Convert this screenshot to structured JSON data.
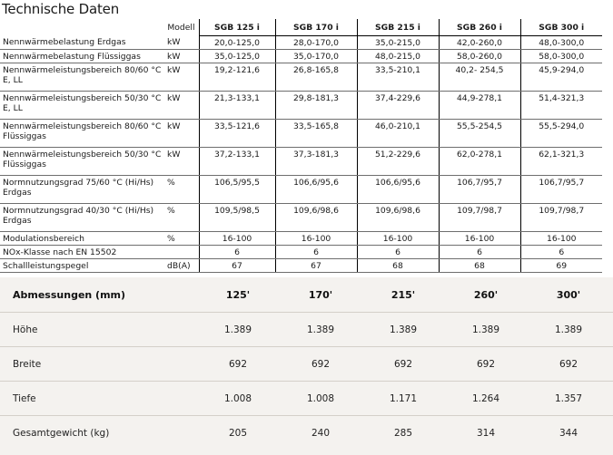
{
  "title": "Technische Daten",
  "tech": {
    "model_label": "Modell",
    "models": [
      "SGB 125 i",
      "SGB 170 i",
      "SGB 215 i",
      "SGB 260 i",
      "SGB 300 i"
    ],
    "rows": [
      {
        "label": [
          "Nennwärmebelastung Erdgas"
        ],
        "unit": "kW",
        "values": [
          "20,0-125,0",
          "28,0-170,0",
          "35,0-215,0",
          "42,0-260,0",
          "48,0-300,0"
        ]
      },
      {
        "label": [
          "Nennwärmebelastung Flüssiggas"
        ],
        "unit": "kW",
        "values": [
          "35,0-125,0",
          "35,0-170,0",
          "48,0-215,0",
          "58,0-260,0",
          "58,0-300,0"
        ]
      },
      {
        "label": [
          "Nennwärmeleistungsbereich 80/60 °C",
          "E, LL"
        ],
        "unit": "kW",
        "values": [
          "19,2-121,6",
          "26,8-165,8",
          "33,5-210,1",
          "40,2- 254,5",
          "45,9-294,0"
        ]
      },
      {
        "label": [
          "Nennwärmeleistungsbereich 50/30 °C",
          "E, LL"
        ],
        "unit": "kW",
        "values": [
          "21,3-133,1",
          "29,8-181,3",
          "37,4-229,6",
          "44,9-278,1",
          "51,4-321,3"
        ]
      },
      {
        "label": [
          "Nennwärmeleistungsbereich 80/60 °C",
          "Flüssiggas"
        ],
        "unit": "kW",
        "values": [
          "33,5-121,6",
          "33,5-165,8",
          "46,0-210,1",
          "55,5-254,5",
          "55,5-294,0"
        ]
      },
      {
        "label": [
          "Nennwärmeleistungsbereich 50/30 °C",
          "Flüssiggas"
        ],
        "unit": "kW",
        "values": [
          "37,2-133,1",
          "37,3-181,3",
          "51,2-229,6",
          "62,0-278,1",
          "62,1-321,3"
        ]
      },
      {
        "label": [
          "Normnutzungsgrad 75/60 °C (Hi/Hs)",
          "Erdgas"
        ],
        "unit": "%",
        "values": [
          "106,5/95,5",
          "106,6/95,6",
          "106,6/95,6",
          "106,7/95,7",
          "106,7/95,7"
        ]
      },
      {
        "label": [
          "Normnutzungsgrad 40/30 °C (Hi/Hs)",
          "Erdgas"
        ],
        "unit": "%",
        "values": [
          "109,5/98,5",
          "109,6/98,6",
          "109,6/98,6",
          "109,7/98,7",
          "109,7/98,7"
        ]
      },
      {
        "label": [
          "Modulationsbereich"
        ],
        "unit": "%",
        "values": [
          "16-100",
          "16-100",
          "16-100",
          "16-100",
          "16-100"
        ]
      },
      {
        "label": [
          "NOx-Klasse nach EN 15502"
        ],
        "unit": "",
        "values": [
          "6",
          "6",
          "6",
          "6",
          "6"
        ]
      },
      {
        "label": [
          "Schallleistungspegel"
        ],
        "unit": "dB(A)",
        "values": [
          "67",
          "67",
          "68",
          "68",
          "69"
        ]
      }
    ]
  },
  "dims": {
    "header": [
      "Abmessungen (mm)",
      "125'",
      "170'",
      "215'",
      "260'",
      "300'"
    ],
    "rows": [
      {
        "label": "Höhe",
        "values": [
          "1.389",
          "1.389",
          "1.389",
          "1.389",
          "1.389"
        ]
      },
      {
        "label": "Breite",
        "values": [
          "692",
          "692",
          "692",
          "692",
          "692"
        ]
      },
      {
        "label": "Tiefe",
        "values": [
          "1.008",
          "1.008",
          "1.171",
          "1.264",
          "1.357"
        ]
      },
      {
        "label": "Gesamtgewicht (kg)",
        "values": [
          "205",
          "240",
          "285",
          "314",
          "344"
        ]
      }
    ]
  }
}
